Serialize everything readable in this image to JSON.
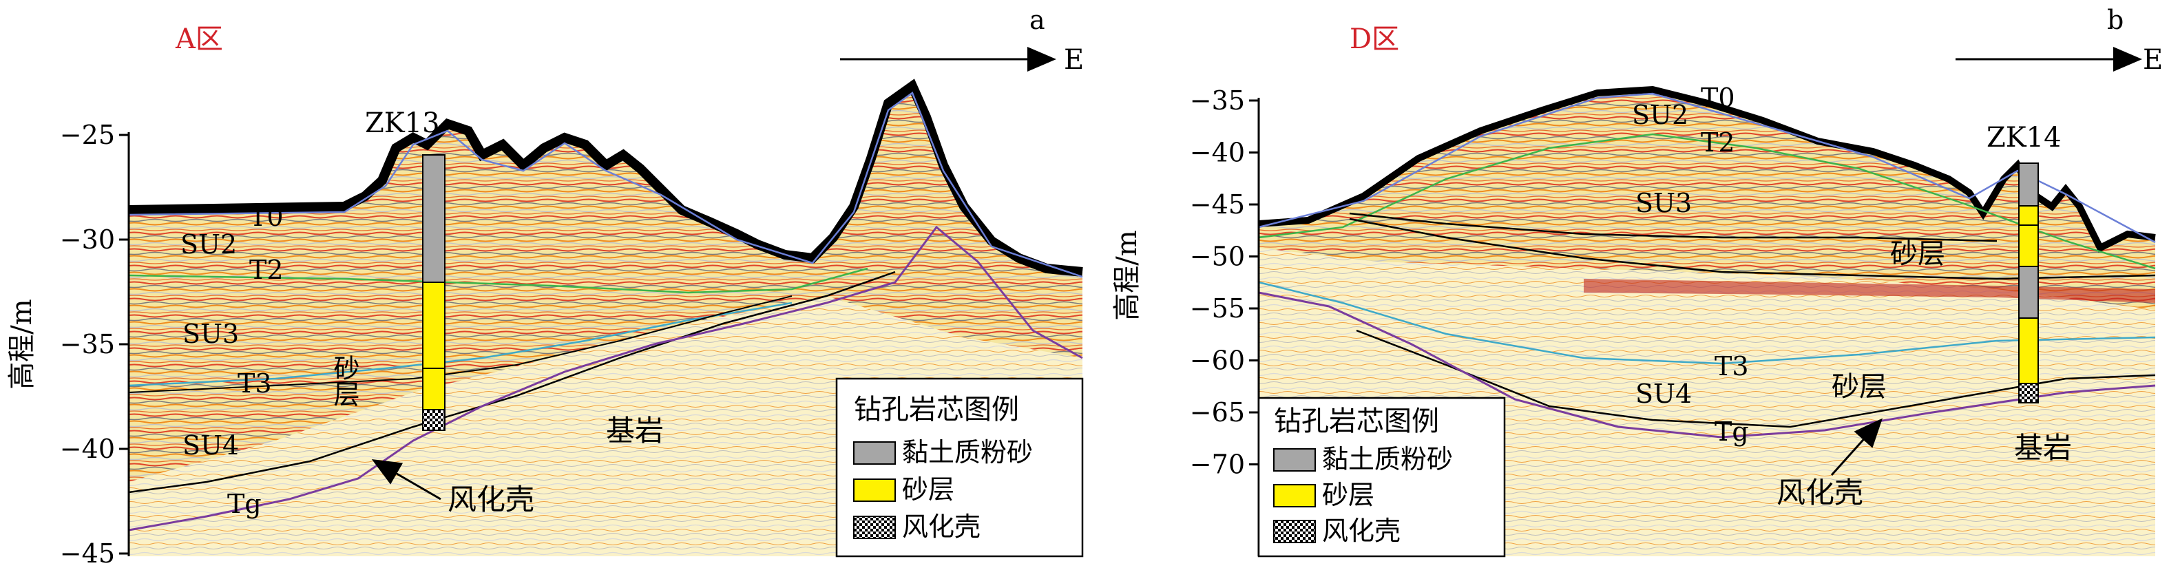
{
  "panel_a": {
    "region": "A区",
    "corner": "a",
    "direction": "E",
    "ylabel": "高程/m",
    "ticks": [
      "−25",
      "−30",
      "−35",
      "−40",
      "−45"
    ],
    "borehole": "ZK13",
    "horizons": [
      "T0",
      "T2",
      "T3",
      "Tg"
    ],
    "units": [
      "SU2",
      "SU3",
      "SU4"
    ],
    "sand": "砂层",
    "bedrock": "基岩",
    "weathered": "风化壳",
    "legend": {
      "title": "钻孔岩芯图例",
      "items": [
        "黏土质粉砂",
        "砂层",
        "风化壳"
      ]
    }
  },
  "panel_b": {
    "region": "D区",
    "corner": "b",
    "direction": "E",
    "ylabel": "高程/m",
    "ticks": [
      "−35",
      "−40",
      "−45",
      "−50",
      "−55",
      "−60",
      "−65",
      "−70"
    ],
    "borehole": "ZK14",
    "horizons": [
      "T0",
      "T2",
      "T3",
      "Tg"
    ],
    "units": [
      "SU2",
      "SU3",
      "SU4"
    ],
    "sand_upper": "砂层",
    "sand_lower": "砂层",
    "bedrock": "基岩",
    "weathered": "风化壳",
    "legend": {
      "title": "钻孔岩芯图例",
      "items": [
        "黏土质粉砂",
        "砂层",
        "风化壳"
      ]
    }
  },
  "colors": {
    "clay": "#a6a6a6",
    "sand": "#fff200",
    "region_label": "#d2232a",
    "t2_line": "#3cb44b",
    "t3_line": "#3fa9c8",
    "tg_line": "#7a3c9e"
  }
}
